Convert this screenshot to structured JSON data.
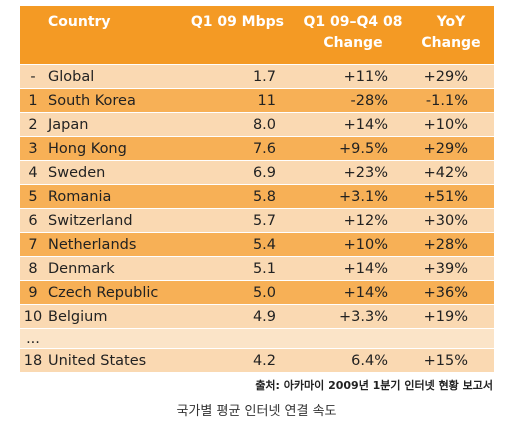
{
  "table": {
    "headers": {
      "rank": "",
      "country": "Country",
      "mbps": "Q1 09 Mbps",
      "change_line1": "Q1 09–Q4 08",
      "change_line2": "Change",
      "yoy_line1": "YoY",
      "yoy_line2": "Change"
    },
    "rows": [
      {
        "rank": "-",
        "country": "Global",
        "mbps": "1.7",
        "change": "+11%",
        "yoy": "+29%",
        "shade": "light"
      },
      {
        "rank": "1",
        "country": "South Korea",
        "mbps": "11",
        "change": "-28%",
        "yoy": "-1.1%",
        "shade": "dark"
      },
      {
        "rank": "2",
        "country": "Japan",
        "mbps": "8.0",
        "change": "+14%",
        "yoy": "+10%",
        "shade": "light"
      },
      {
        "rank": "3",
        "country": "Hong Kong",
        "mbps": "7.6",
        "change": "+9.5%",
        "yoy": "+29%",
        "shade": "dark"
      },
      {
        "rank": "4",
        "country": "Sweden",
        "mbps": "6.9",
        "change": "+23%",
        "yoy": "+42%",
        "shade": "light"
      },
      {
        "rank": "5",
        "country": "Romania",
        "mbps": "5.8",
        "change": "+3.1%",
        "yoy": "+51%",
        "shade": "dark"
      },
      {
        "rank": "6",
        "country": "Switzerland",
        "mbps": "5.7",
        "change": "+12%",
        "yoy": "+30%",
        "shade": "light"
      },
      {
        "rank": "7",
        "country": "Netherlands",
        "mbps": "5.4",
        "change": "+10%",
        "yoy": "+28%",
        "shade": "dark"
      },
      {
        "rank": "8",
        "country": "Denmark",
        "mbps": "5.1",
        "change": "+14%",
        "yoy": "+39%",
        "shade": "light"
      },
      {
        "rank": "9",
        "country": "Czech Republic",
        "mbps": "5.0",
        "change": "+14%",
        "yoy": "+36%",
        "shade": "dark"
      },
      {
        "rank": "10",
        "country": "Belgium",
        "mbps": "4.9",
        "change": "+3.3%",
        "yoy": "+19%",
        "shade": "light"
      },
      {
        "rank": "...",
        "country": "",
        "mbps": "",
        "change": "",
        "yoy": "",
        "shade": "gap"
      },
      {
        "rank": "18",
        "country": "United States",
        "mbps": "4.2",
        "change": "6.4%",
        "yoy": "+15%",
        "shade": "light"
      }
    ]
  },
  "source": "출처: 아카마이 2009년 1분기 인터넷 현황 보고서",
  "caption": "국가별 평균 인터넷 연결 속도",
  "colors": {
    "header": "#f49a24",
    "row_light": "#fad9b2",
    "row_dark": "#f7b056",
    "row_gap": "#fbe4c8"
  }
}
